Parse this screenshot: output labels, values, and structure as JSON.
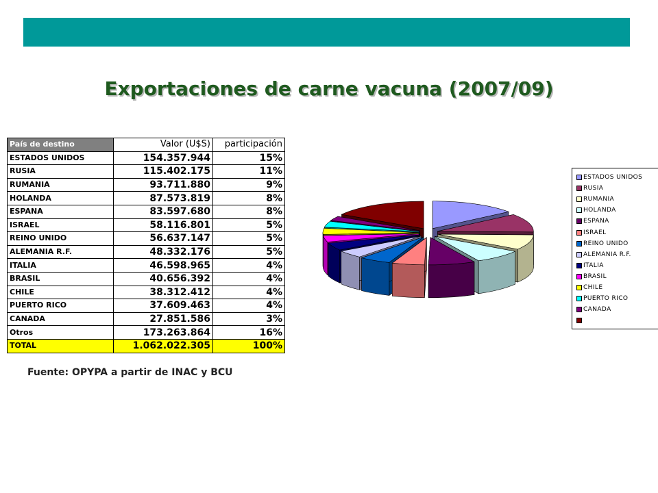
{
  "title": "Exportaciones de carne vacuna (2007/09)",
  "source": "Fuente: OPYPA a partir de INAC y BCU",
  "table": {
    "headers": [
      "País de destino",
      "Valor (U$S)",
      "participación"
    ],
    "rows": [
      [
        "ESTADOS UNIDOS",
        "154.357.944",
        "15%"
      ],
      [
        "RUSIA",
        "115.402.175",
        "11%"
      ],
      [
        "RUMANIA",
        "93.711.880",
        "9%"
      ],
      [
        "HOLANDA",
        "87.573.819",
        "8%"
      ],
      [
        "ESPANA",
        "83.597.680",
        "8%"
      ],
      [
        "ISRAEL",
        "58.116.801",
        "5%"
      ],
      [
        "REINO UNIDO",
        "56.637.147",
        "5%"
      ],
      [
        "ALEMANIA R.F.",
        "48.332.176",
        "5%"
      ],
      [
        "ITALIA",
        "46.598.965",
        "4%"
      ],
      [
        "BRASIL",
        "40.656.392",
        "4%"
      ],
      [
        "CHILE",
        "38.312.412",
        "4%"
      ],
      [
        "PUERTO RICO",
        "37.609.463",
        "4%"
      ],
      [
        "CANADA",
        "27.851.586",
        "3%"
      ],
      [
        "Otros",
        "173.263.864",
        "16%"
      ]
    ],
    "total": [
      "TOTAL",
      "1.062.022.305",
      "100%"
    ]
  },
  "chart_data": {
    "type": "pie",
    "labels": [
      "ESTADOS UNIDOS",
      "RUSIA",
      "RUMANIA",
      "HOLANDA",
      "ESPANA",
      "ISRAEL",
      "REINO UNIDO",
      "ALEMANIA R.F.",
      "ITALIA",
      "BRASIL",
      "CHILE",
      "PUERTO RICO",
      "CANADA",
      ""
    ],
    "values": [
      154357944,
      115402175,
      93711880,
      87573819,
      83597680,
      58116801,
      56637147,
      48332176,
      46598965,
      40656392,
      38312412,
      37609463,
      27851586,
      173263864
    ],
    "colors": [
      "#9999ff",
      "#993366",
      "#ffffcc",
      "#ccffff",
      "#660066",
      "#ff8080",
      "#0066cc",
      "#ccccff",
      "#000080",
      "#ff00ff",
      "#ffff00",
      "#00ffff",
      "#800080",
      "#800000"
    ],
    "legend_position": "right",
    "exploded": true,
    "three_d": true
  }
}
